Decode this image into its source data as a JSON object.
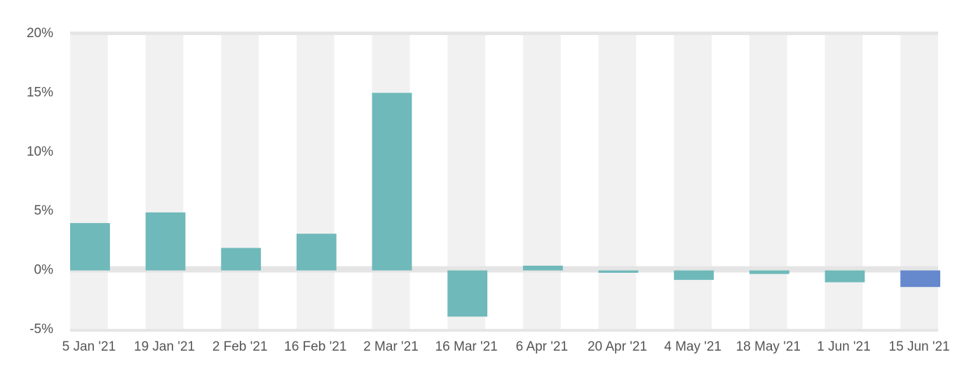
{
  "chart_data": {
    "type": "bar",
    "categories": [
      "5 Jan '21",
      "19 Jan '21",
      "2 Feb '21",
      "16 Feb '21",
      "2 Mar '21",
      "16 Mar '21",
      "6 Apr '21",
      "20 Apr '21",
      "4 May '21",
      "18 May '21",
      "1 Jun '21",
      "15 Jun '21"
    ],
    "values": [
      4.0,
      4.9,
      1.9,
      3.1,
      15.0,
      -3.9,
      0.4,
      -0.2,
      -0.8,
      -0.3,
      -1.0,
      -1.4
    ],
    "colors": [
      "#6fb9ba",
      "#6fb9ba",
      "#6fb9ba",
      "#6fb9ba",
      "#6fb9ba",
      "#6fb9ba",
      "#6fb9ba",
      "#6fb9ba",
      "#6fb9ba",
      "#6fb9ba",
      "#6fb9ba",
      "#6688cc"
    ],
    "ylim": [
      -5,
      20
    ],
    "yticks": [
      {
        "value": -5,
        "label": "-5%"
      },
      {
        "value": 0,
        "label": "0%"
      },
      {
        "value": 5,
        "label": "5%"
      },
      {
        "value": 10,
        "label": "10%"
      },
      {
        "value": 15,
        "label": "15%"
      },
      {
        "value": 20,
        "label": "20%"
      }
    ],
    "grid": false
  }
}
